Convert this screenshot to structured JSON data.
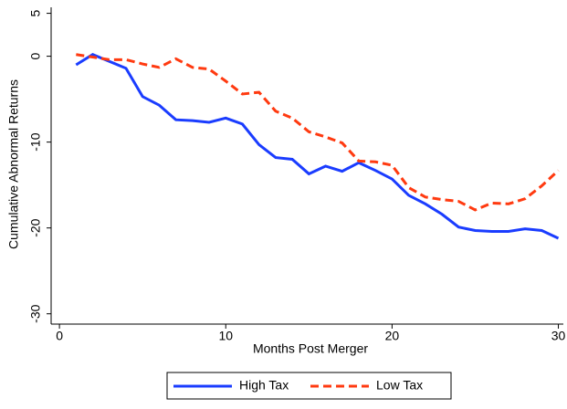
{
  "chart_data": {
    "type": "line",
    "x_label": "Months Post Merger",
    "y_label": "Cumulative Abnormal Returns",
    "x": [
      1,
      2,
      3,
      4,
      5,
      6,
      7,
      8,
      9,
      10,
      11,
      12,
      13,
      14,
      15,
      16,
      17,
      18,
      19,
      20,
      21,
      22,
      23,
      24,
      25,
      26,
      27,
      28,
      29,
      30
    ],
    "series": [
      {
        "name": "High Tax",
        "color": "#1a3cff",
        "dash": false,
        "values": [
          -1.0,
          0.2,
          -0.6,
          -1.4,
          -4.7,
          -5.7,
          -7.4,
          -7.5,
          -7.7,
          -7.2,
          -7.9,
          -10.3,
          -11.8,
          -12.0,
          -13.7,
          -12.8,
          -13.4,
          -12.4,
          -13.3,
          -14.3,
          -16.2,
          -17.2,
          -18.4,
          -19.9,
          -20.3,
          -20.4,
          -20.4,
          -20.1,
          -20.3,
          -21.2
        ]
      },
      {
        "name": "Low Tax",
        "color": "#ff3a10",
        "dash": true,
        "values": [
          0.2,
          -0.1,
          -0.4,
          -0.4,
          -0.9,
          -1.3,
          -0.3,
          -1.3,
          -1.5,
          -2.9,
          -4.4,
          -4.2,
          -6.4,
          -7.2,
          -8.8,
          -9.4,
          -10.1,
          -12.2,
          -12.3,
          -12.7,
          -15.3,
          -16.4,
          -16.7,
          -16.9,
          -17.9,
          -17.1,
          -17.2,
          -16.6,
          -15.1,
          -13.3
        ]
      }
    ],
    "xlim": [
      -0.5,
      30.3
    ],
    "xticks": [
      0,
      10,
      20,
      30
    ],
    "ylim": [
      -31.2,
      5.7
    ],
    "yticks": [
      5,
      0,
      -10,
      -20,
      -30
    ]
  }
}
